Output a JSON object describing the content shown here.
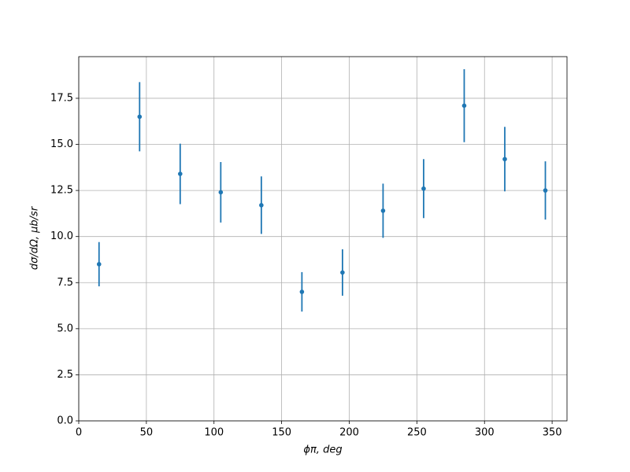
{
  "chart_data": {
    "type": "errorbar",
    "x_label": "ϕπ, deg",
    "y_label": "dσ/dΩ, μb/sr",
    "x": [
      15,
      45,
      75,
      105,
      135,
      165,
      195,
      225,
      255,
      285,
      315,
      345
    ],
    "values": [
      8.5,
      16.5,
      13.4,
      12.4,
      11.7,
      7.0,
      8.05,
      11.4,
      12.6,
      17.1,
      14.2,
      12.5
    ],
    "errors": [
      1.2,
      1.88,
      1.64,
      1.64,
      1.56,
      1.07,
      1.26,
      1.47,
      1.6,
      1.98,
      1.75,
      1.58
    ],
    "color": "#1f77b4",
    "xlim": [
      0,
      361
    ],
    "ylim": [
      0,
      19.76
    ],
    "xticks": [
      0,
      50,
      100,
      150,
      200,
      250,
      300,
      350
    ],
    "yticks": [
      {
        "value": 0,
        "label": "0.0"
      },
      2.5,
      {
        "value": 5,
        "label": "5.0"
      },
      7.5,
      {
        "value": 10,
        "label": "10.0"
      },
      12.5,
      {
        "value": 15,
        "label": "15.0"
      },
      17.5
    ],
    "grid": true
  }
}
